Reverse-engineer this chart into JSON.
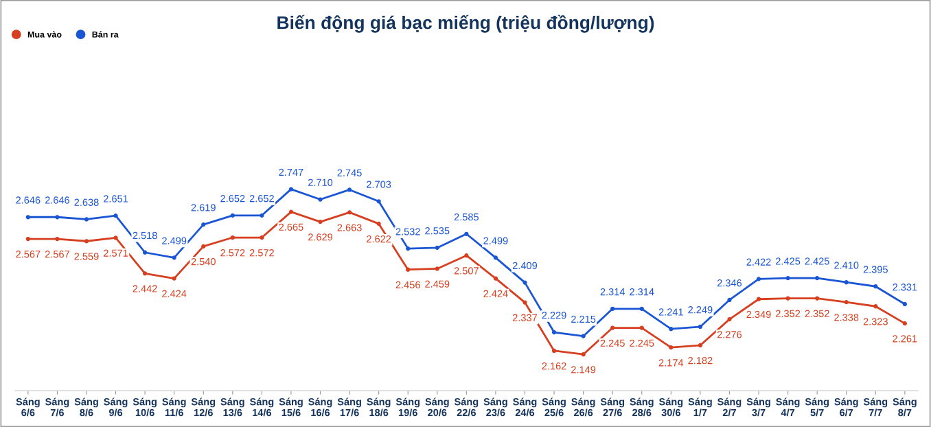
{
  "chart_data": {
    "type": "line",
    "title": "Biến động giá bạc miếng (triệu đồng/lượng)",
    "categories": [
      "Sáng\n6/6",
      "Sáng\n7/6",
      "Sáng\n8/6",
      "Sáng\n9/6",
      "Sáng\n10/6",
      "Sáng\n11/6",
      "Sáng\n12/6",
      "Sáng\n13/6",
      "Sáng\n14/6",
      "Sáng\n15/6",
      "Sáng\n16/6",
      "Sáng\n17/6",
      "Sáng\n18/6",
      "Sáng\n19/6",
      "Sáng\n20/6",
      "Sáng\n22/6",
      "Sáng\n23/6",
      "Sáng\n24/6",
      "Sáng\n25/6",
      "Sáng\n26/6",
      "Sáng\n27/6",
      "Sáng\n28/6",
      "Sáng\n30/6",
      "Sáng\n1/7",
      "Sáng\n2/7",
      "Sáng\n3/7",
      "Sáng\n4/7",
      "Sáng\n5/7",
      "Sáng\n6/7",
      "Sáng\n7/7",
      "Sáng\n8/7"
    ],
    "series": [
      {
        "name": "Mua vào",
        "color": "#d63f1f",
        "values": [
          2.567,
          2.567,
          2.559,
          2.571,
          2.442,
          2.424,
          2.54,
          2.572,
          2.572,
          2.665,
          2.629,
          2.663,
          2.622,
          2.456,
          2.459,
          2.507,
          2.424,
          2.337,
          2.162,
          2.149,
          2.245,
          2.245,
          2.174,
          2.182,
          2.276,
          2.349,
          2.352,
          2.352,
          2.338,
          2.323,
          2.261
        ],
        "value_labels": [
          "2.567",
          "2.567",
          "2.559",
          "2.571",
          "2.442",
          "2.424",
          "2.540",
          "2.572",
          "2.572",
          "2.665",
          "2.629",
          "2.663",
          "2.622",
          "2.456",
          "2.459",
          "2.507",
          "2.424",
          "2.337",
          "2.162",
          "2.149",
          "2.245",
          "2.245",
          "2.174",
          "2.182",
          "2.276",
          "2.349",
          "2.352",
          "2.352",
          "2.338",
          "2.323",
          "2.261"
        ]
      },
      {
        "name": "Bán ra",
        "color": "#1a55d4",
        "values": [
          2.646,
          2.646,
          2.638,
          2.651,
          2.518,
          2.499,
          2.619,
          2.652,
          2.652,
          2.747,
          2.71,
          2.745,
          2.703,
          2.532,
          2.535,
          2.585,
          2.499,
          2.409,
          2.229,
          2.215,
          2.314,
          2.314,
          2.241,
          2.249,
          2.346,
          2.422,
          2.425,
          2.425,
          2.41,
          2.395,
          2.331
        ],
        "value_labels": [
          "2.646",
          "2.646",
          "2.638",
          "2.651",
          "2.518",
          "2.499",
          "2.619",
          "2.652",
          "2.652",
          "2.747",
          "2.710",
          "2.745",
          "2.703",
          "2.532",
          "2.535",
          "2.585",
          "2.499",
          "2.409",
          "2.229",
          "2.215",
          "2.314",
          "2.314",
          "2.241",
          "2.249",
          "2.346",
          "2.422",
          "2.425",
          "2.425",
          "2.410",
          "2.395",
          "2.331"
        ]
      }
    ],
    "legend": "top left",
    "marker": "circle",
    "line_style": "solid",
    "grid": false
  }
}
